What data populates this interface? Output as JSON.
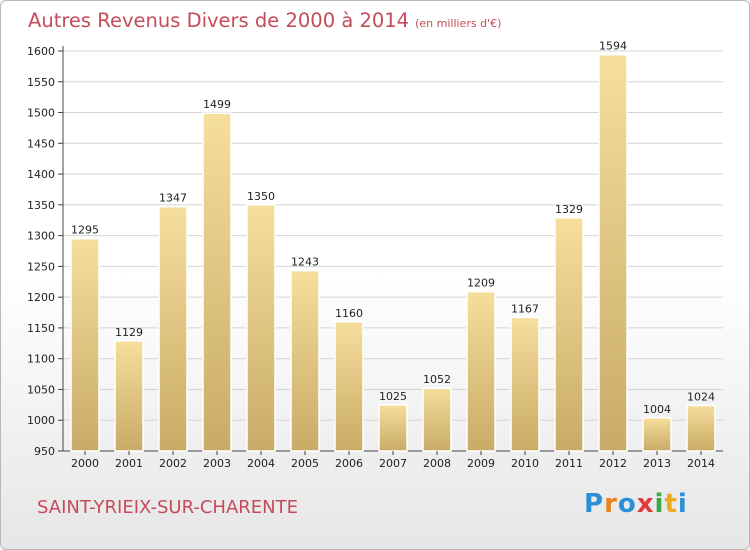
{
  "header": {
    "title": "Autres Revenus Divers de 2000 à 2014",
    "unit": "(en milliers d'€)"
  },
  "footer": {
    "commune": "SAINT-YRIEIX-SUR-CHARENTE",
    "logo_letters": [
      "P",
      "r",
      "o",
      "x",
      "i",
      "t",
      "i"
    ],
    "logo_colors": [
      "#2a8fd6",
      "#e8841f",
      "#2a8fd6",
      "#e13a3a",
      "#39a845",
      "#f0a81c",
      "#2a8fd6"
    ]
  },
  "colors": {
    "text_accent": "#c44c5a",
    "bar_light": "#f6de9c",
    "bar_dark": "#c8ab66"
  },
  "chart_data": {
    "type": "bar",
    "title": "Autres Revenus Divers de 2000 à 2014",
    "xlabel": "",
    "ylabel": "",
    "ylim": [
      950,
      1600
    ],
    "y_ticks": [
      950,
      1000,
      1050,
      1100,
      1150,
      1200,
      1250,
      1300,
      1350,
      1400,
      1450,
      1500,
      1550,
      1600
    ],
    "grid": true,
    "categories": [
      "2000",
      "2001",
      "2002",
      "2003",
      "2004",
      "2005",
      "2006",
      "2007",
      "2008",
      "2009",
      "2010",
      "2011",
      "2012",
      "2013",
      "2014"
    ],
    "values": [
      1295,
      1129,
      1347,
      1499,
      1350,
      1243,
      1160,
      1025,
      1052,
      1209,
      1167,
      1329,
      1594,
      1004,
      1024
    ]
  }
}
